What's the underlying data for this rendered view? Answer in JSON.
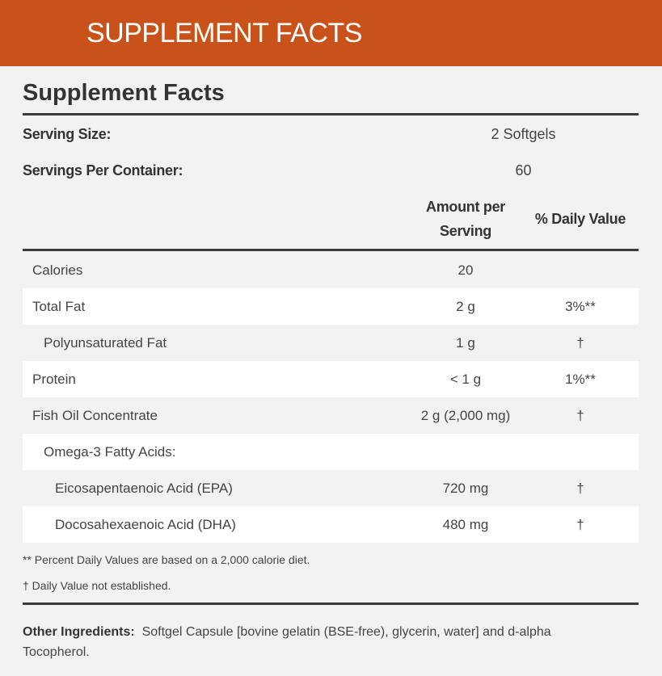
{
  "banner": {
    "title": "SUPPLEMENT FACTS"
  },
  "facts": {
    "title": "Supplement Facts",
    "serving_size_label": "Serving Size:",
    "serving_size": "2 Softgels",
    "servings_label": "Servings Per Container:",
    "servings": "60",
    "col_amount_1": "Amount per",
    "col_amount_2": "Serving",
    "col_dv": "% Daily Value",
    "rows": [
      {
        "name": "Calories",
        "amount": "20",
        "dv": ""
      },
      {
        "name": "Total Fat",
        "amount": "2 g",
        "dv": "3%**"
      },
      {
        "name": "Polyunsaturated Fat",
        "amount": "1 g",
        "dv": "†"
      },
      {
        "name": "Protein",
        "amount": "< 1 g",
        "dv": "1%**"
      },
      {
        "name": "Fish Oil Concentrate",
        "amount": "2 g (2,000 mg)",
        "dv": "†"
      },
      {
        "name": "Omega-3 Fatty Acids:",
        "amount": "",
        "dv": ""
      },
      {
        "name": "Eicosapentaenoic Acid (EPA)",
        "amount": "720 mg",
        "dv": "†"
      },
      {
        "name": "Docosahexaenoic Acid (DHA)",
        "amount": "480 mg",
        "dv": "†"
      }
    ],
    "note1": "** Percent Daily Values are based on a 2,000 calorie diet.",
    "note2": "† Daily Value not established.",
    "other_label": "Other Ingredients:",
    "other_text": "Softgel Capsule [bovine gelatin (BSE-free), glycerin, water] and d-alpha Tocopherol."
  }
}
